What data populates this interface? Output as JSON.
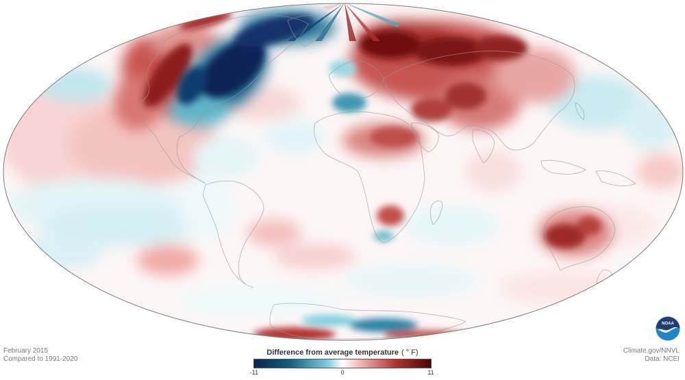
{
  "map": {
    "projection": "Hammer (equal-area, whole world)",
    "variable": "temperature anomaly",
    "notable_warm_anomalies": [
      "Eastern Europe & Western Russia",
      "Western North America",
      "Sahara / Sahel",
      "Southern Africa",
      "Australia",
      "Antarctica (Weddell sector)"
    ],
    "notable_cold_anomalies": [
      "Eastern North America / Canada",
      "Northern Atlantic",
      "Antarctica (Ross sector)"
    ]
  },
  "footer": {
    "date_line": "February 2015",
    "baseline_line": "Compared to 1991-2020",
    "source_line": "Climate.gov/NNVL",
    "data_line": "Data: NCEI"
  },
  "legend": {
    "title": "Difference from average temperature",
    "unit": "( ° F)",
    "min_label": "-11",
    "mid_label": "0",
    "max_label": "11",
    "colors": [
      "#0b2457",
      "#0f5f7e",
      "#7fd0e0",
      "#ffffff",
      "#f4b5b5",
      "#b5312f",
      "#4a0505"
    ]
  },
  "logo": {
    "text": "NOAA",
    "icon": "noaa-logo-icon",
    "colors": {
      "top": "#1d3f75",
      "bottom": "#1d86c8",
      "bird": "#ffffff"
    }
  }
}
